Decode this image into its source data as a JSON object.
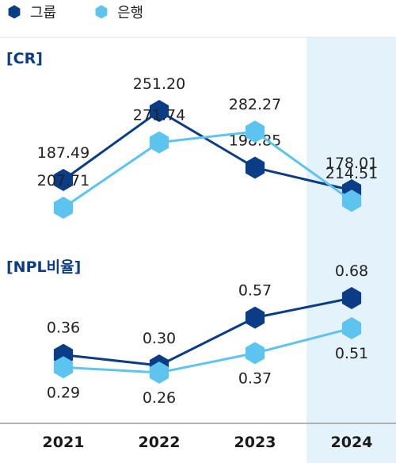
{
  "legend": {
    "items": [
      {
        "label": "그룹",
        "color": "#0b3c86"
      },
      {
        "label": "은행",
        "color": "#5cc4ee"
      }
    ]
  },
  "highlight": {
    "category": "2024",
    "color": "#e3f2fb"
  },
  "chart_data": [
    {
      "type": "line",
      "section_label": "[CR]",
      "categories": [
        "2021",
        "2022",
        "2023",
        "2024"
      ],
      "series": [
        {
          "name": "그룹",
          "color": "#0b3c86",
          "values": [
            187.49,
            251.2,
            198.85,
            178.01
          ],
          "labels": [
            "187.49",
            "251.20",
            "198.85",
            "178.01"
          ]
        },
        {
          "name": "은행",
          "color": "#5cc4ee",
          "values": [
            207.71,
            271.74,
            282.27,
            214.51
          ],
          "labels": [
            "207.71",
            "271.74",
            "282.27",
            "214.51"
          ]
        }
      ],
      "legend_position": "top-left",
      "grid": false
    },
    {
      "type": "line",
      "section_label": "[NPL비율]",
      "categories": [
        "2021",
        "2022",
        "2023",
        "2024"
      ],
      "series": [
        {
          "name": "그룹",
          "color": "#0b3c86",
          "values": [
            0.36,
            0.3,
            0.57,
            0.68
          ],
          "labels": [
            "0.36",
            "0.30",
            "0.57",
            "0.68"
          ]
        },
        {
          "name": "은행",
          "color": "#5cc4ee",
          "values": [
            0.29,
            0.26,
            0.37,
            0.51
          ],
          "labels": [
            "0.29",
            "0.26",
            "0.37",
            "0.51"
          ]
        }
      ],
      "legend_position": "top-left",
      "grid": false
    }
  ],
  "x_axis": {
    "categories": [
      "2021",
      "2022",
      "2023",
      "2024"
    ]
  }
}
